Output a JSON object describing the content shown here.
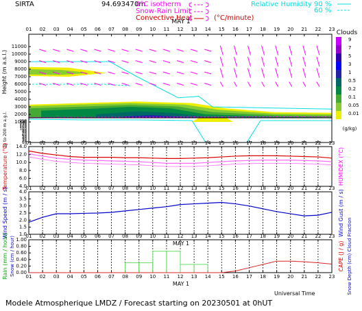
{
  "header": {
    "station": "SIRTA",
    "altitude": "94.69347",
    "unit": "0m",
    "legend_left": [
      {
        "label": "0°C isotherm",
        "color": "#ff00ff"
      },
      {
        "label": "Snow-Rain Limit",
        "color": "#ff00ff"
      },
      {
        "label": "Convective Heat",
        "color": "#cc0000",
        "unit": "(°C/minute)"
      }
    ],
    "legend_right": {
      "label": "Relative Humidity",
      "values": [
        "90 %",
        "60 %"
      ],
      "color": "#00e0e0"
    }
  },
  "date_label": "MAY 1",
  "hours": [
    "01",
    "02",
    "03",
    "04",
    "05",
    "06",
    "07",
    "08",
    "09",
    "10",
    "11",
    "12",
    "13",
    "14",
    "15",
    "16",
    "17",
    "18",
    "19",
    "20",
    "21",
    "22",
    "23"
  ],
  "footer": {
    "text": "Modele Atmospherique LMDZ / Forecast starting on 20230501 at 0hUT",
    "xlabel": "Universal Time"
  },
  "chart_data": [
    {
      "type": "heatmap",
      "title": "Clouds",
      "ylabel": "Height (m a.s.l.)",
      "ylabel_low": "Up to 200 m a.g.l.",
      "yticks_upper": [
        11000,
        10000,
        9000,
        8000,
        7000,
        6000,
        5000,
        4000,
        3000,
        2000,
        1000
      ],
      "yticks_lower": [
        150,
        140,
        130,
        120,
        110,
        100,
        90,
        80,
        70,
        60,
        50,
        40,
        30,
        20,
        10
      ],
      "colorbar": {
        "labels": [
          "9",
          "7",
          "5",
          "3",
          "1",
          "0.5",
          "0.2",
          "0.1",
          "0.05",
          "0.01"
        ],
        "colors": [
          "#cc00ff",
          "#9900cc",
          "#3300aa",
          "#0000ff",
          "#2222aa",
          "#006666",
          "#008844",
          "#44aa33",
          "#88cc33",
          "#eeee00"
        ],
        "unit": "(g/kg)"
      }
    },
    {
      "type": "line",
      "ylabel": "Temperature (°C)",
      "ylabel_right": "HUMIDEX (°C)",
      "ylim": [
        4,
        14
      ],
      "yticks": [
        "14.0",
        "12.0",
        "10.0",
        "8.0",
        "6.0",
        "4.0"
      ],
      "series": [
        {
          "color": "#dd0000",
          "values": [
            12.9,
            12.3,
            11.9,
            11.5,
            11.3,
            11.3,
            11.3,
            11.2,
            11.2,
            11.1,
            11.0,
            11.0,
            11.1,
            11.2,
            11.4,
            11.6,
            11.7,
            11.7,
            11.7,
            11.6,
            11.5,
            11.4,
            11.1
          ]
        },
        {
          "color": "#ff66ff",
          "values": [
            12.2,
            11.6,
            11.1,
            10.8,
            10.6,
            10.5,
            10.4,
            10.3,
            10.2,
            10.0,
            9.8,
            9.8,
            9.8,
            10.0,
            10.2,
            10.4,
            10.5,
            10.6,
            10.6,
            10.6,
            10.5,
            10.4,
            10.2
          ]
        }
      ]
    },
    {
      "type": "line",
      "ylabel": "Wind Speed (m / s)",
      "ylabel_right": "Wind Gust (m / s)",
      "ylim": [
        1.0,
        4.0
      ],
      "yticks": [
        "4.0",
        "3.5",
        "3.0",
        "2.5",
        "2.0",
        "1.5",
        "1.0"
      ],
      "series": [
        {
          "color": "#0000cc",
          "values": [
            1.85,
            2.2,
            2.45,
            2.45,
            2.48,
            2.5,
            2.55,
            2.65,
            2.75,
            2.85,
            2.95,
            3.1,
            3.15,
            3.2,
            3.25,
            3.15,
            3.0,
            2.8,
            2.6,
            2.45,
            2.3,
            2.35,
            2.55
          ]
        }
      ]
    },
    {
      "type": "bar",
      "ylabel": "Rain (mm / hour)",
      "ylabel_snow": "Snow (cm / hour)",
      "ylabel_right": "CAPE (J / g)",
      "ylabel_right2": "Snow Depth (cm) Cloud Fraction",
      "ylim": [
        0,
        1.0
      ],
      "yticks": [
        "1.00",
        "0.80",
        "0.60",
        "0.40",
        "0.20",
        "0.00"
      ],
      "rain": [
        0,
        0,
        0,
        0,
        0,
        0,
        0,
        0.3,
        0.3,
        0.65,
        0.65,
        0.25,
        0.25,
        0,
        0,
        0,
        0,
        0,
        0,
        0,
        0,
        0,
        0
      ],
      "cape_line": {
        "color": "#dd2222",
        "values": [
          0,
          0,
          0,
          0,
          0,
          0,
          0,
          0,
          0,
          0,
          0,
          0,
          0,
          0,
          0,
          0.05,
          0.15,
          0.25,
          0.35,
          0.35,
          0.33,
          0.3,
          0.26
        ]
      }
    }
  ]
}
